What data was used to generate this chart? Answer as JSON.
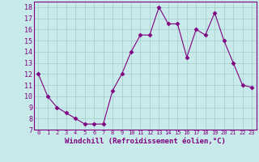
{
  "x": [
    0,
    1,
    2,
    3,
    4,
    5,
    6,
    7,
    8,
    9,
    10,
    11,
    12,
    13,
    14,
    15,
    16,
    17,
    18,
    19,
    20,
    21,
    22,
    23
  ],
  "y": [
    12,
    10,
    9,
    8.5,
    8,
    7.5,
    7.5,
    7.5,
    10.5,
    12,
    14,
    15.5,
    15.5,
    18,
    16.5,
    16.5,
    13.5,
    16,
    15.5,
    17.5,
    15,
    13,
    11,
    10.8
  ],
  "line_color": "#800080",
  "marker": "D",
  "marker_size": 2.5,
  "bg_color": "#c8eaea",
  "grid_color": "#a8d0d0",
  "xlabel": "Windchill (Refroidissement éolien,°C)",
  "xlabel_fontsize": 6.5,
  "xtick_fontsize": 5.0,
  "ytick_fontsize": 6.0,
  "ylim": [
    7,
    18.5
  ],
  "xlim": [
    -0.5,
    23.5
  ],
  "yticks": [
    7,
    8,
    9,
    10,
    11,
    12,
    13,
    14,
    15,
    16,
    17,
    18
  ],
  "xticks": [
    0,
    1,
    2,
    3,
    4,
    5,
    6,
    7,
    8,
    9,
    10,
    11,
    12,
    13,
    14,
    15,
    16,
    17,
    18,
    19,
    20,
    21,
    22,
    23
  ]
}
